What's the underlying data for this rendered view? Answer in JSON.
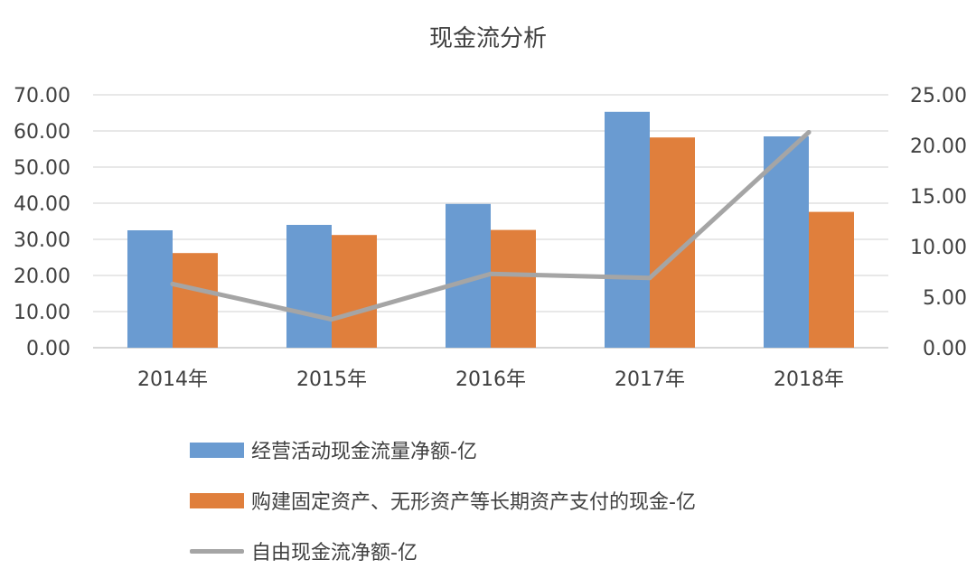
{
  "chart_data": {
    "type": "bar",
    "title": "现金流分析",
    "categories": [
      "2014年",
      "2015年",
      "2016年",
      "2017年",
      "2018年"
    ],
    "y_left": {
      "min": 0,
      "max": 70,
      "step": 10,
      "tick_labels": [
        "0.00",
        "10.00",
        "20.00",
        "30.00",
        "40.00",
        "50.00",
        "60.00",
        "70.00"
      ]
    },
    "y_right": {
      "min": 0,
      "max": 25,
      "step": 5,
      "tick_labels": [
        "0.00",
        "5.00",
        "10.00",
        "15.00",
        "20.00",
        "25.00"
      ]
    },
    "grid": true,
    "legend_position": "bottom",
    "series": [
      {
        "name": "经营活动现金流量净额-亿",
        "kind": "bar",
        "axis": "left",
        "color": "#6a9bd1",
        "values": [
          32.5,
          34.0,
          39.8,
          65.3,
          58.5
        ]
      },
      {
        "name": "购建固定资产、无形资产等长期资产支付的现金-亿",
        "kind": "bar",
        "axis": "left",
        "color": "#e07f3c",
        "values": [
          26.2,
          31.2,
          32.6,
          58.2,
          37.6
        ]
      },
      {
        "name": "自由现金流净额-亿",
        "kind": "line",
        "axis": "right",
        "color": "#a5a5a5",
        "values": [
          6.3,
          2.8,
          7.3,
          6.9,
          21.3
        ]
      }
    ]
  }
}
